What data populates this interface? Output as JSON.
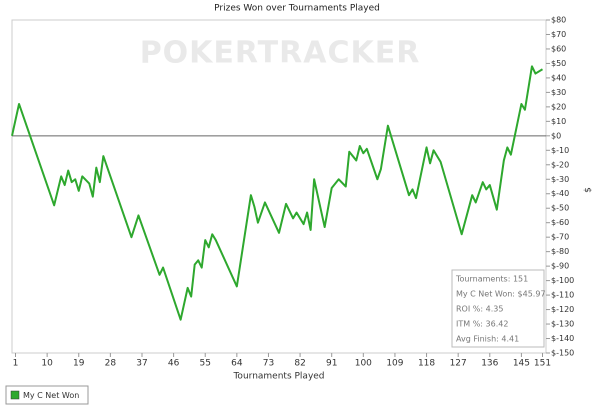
{
  "chart_data": {
    "type": "line",
    "title": "Prizes Won over Tournaments Played",
    "watermark": "POKERTRACKER",
    "x_label": "Tournaments Played",
    "y_label": "$",
    "xlim": [
      0,
      152
    ],
    "xticks": [
      1,
      10,
      19,
      28,
      37,
      46,
      55,
      64,
      73,
      82,
      91,
      100,
      109,
      118,
      127,
      136,
      145,
      151
    ],
    "ylim": [
      -150,
      80
    ],
    "yticks": [
      {
        "value": 80,
        "label": "$80"
      },
      {
        "value": 70,
        "label": "$70"
      },
      {
        "value": 60,
        "label": "$60"
      },
      {
        "value": 50,
        "label": "$50"
      },
      {
        "value": 40,
        "label": "$40"
      },
      {
        "value": 30,
        "label": "$30"
      },
      {
        "value": 20,
        "label": "$20"
      },
      {
        "value": 10,
        "label": "$10"
      },
      {
        "value": 0,
        "label": "$0"
      },
      {
        "value": -10,
        "label": "$-10"
      },
      {
        "value": -20,
        "label": "$-20"
      },
      {
        "value": -30,
        "label": "$-30"
      },
      {
        "value": -40,
        "label": "$-40"
      },
      {
        "value": -50,
        "label": "$-50"
      },
      {
        "value": -60,
        "label": "$-60"
      },
      {
        "value": -70,
        "label": "$-70"
      },
      {
        "value": -80,
        "label": "$-80"
      },
      {
        "value": -90,
        "label": "$-90"
      },
      {
        "value": -100,
        "label": "$-100"
      },
      {
        "value": -110,
        "label": "$-110"
      },
      {
        "value": -120,
        "label": "$-120"
      },
      {
        "value": -130,
        "label": "$-130"
      },
      {
        "value": -140,
        "label": "$-140"
      },
      {
        "value": -150,
        "label": "$-150"
      }
    ],
    "x": [
      0,
      2,
      12,
      14,
      15,
      16,
      17,
      18,
      19,
      20,
      22,
      23,
      24,
      25,
      26,
      34,
      36,
      42,
      43,
      48,
      50,
      51,
      52,
      53,
      54,
      55,
      56,
      57,
      58,
      64,
      68,
      69,
      70,
      72,
      76,
      78,
      80,
      81,
      83,
      84,
      85,
      86,
      89,
      91,
      93,
      95,
      96,
      98,
      99,
      100,
      101,
      104,
      105,
      107,
      113,
      114,
      115,
      118,
      119,
      120,
      122,
      128,
      131,
      132,
      134,
      135,
      136,
      138,
      140,
      141,
      142,
      145,
      146,
      148,
      149,
      151
    ],
    "series": [
      {
        "name": "My C Net Won",
        "color": "#2ea82e",
        "values": [
          0,
          22,
          -48,
          -28,
          -34,
          -24,
          -32,
          -30,
          -38,
          -28,
          -33,
          -42,
          -22,
          -32,
          -14,
          -70,
          -55,
          -96,
          -91,
          -127,
          -105,
          -111,
          -89,
          -86,
          -91,
          -72,
          -77,
          -68,
          -72,
          -104,
          -41,
          -49,
          -60,
          -46,
          -67,
          -47,
          -57,
          -53,
          -61,
          -53,
          -65,
          -30,
          -63,
          -36,
          -30,
          -35,
          -11,
          -17,
          -7,
          -12,
          -9,
          -30,
          -23,
          7,
          -41,
          -37,
          -43,
          -8,
          -19,
          -10,
          -18,
          -68,
          -41,
          -46,
          -32,
          -37,
          -34,
          -51,
          -17,
          -8,
          -13,
          22,
          18,
          48,
          43,
          46
        ]
      }
    ],
    "stats": [
      "Tournaments: 151",
      "My C Net Won: $45.97",
      "ROI %: 4.35",
      "ITM %: 36.42",
      "Avg Finish: 4.41"
    ]
  }
}
